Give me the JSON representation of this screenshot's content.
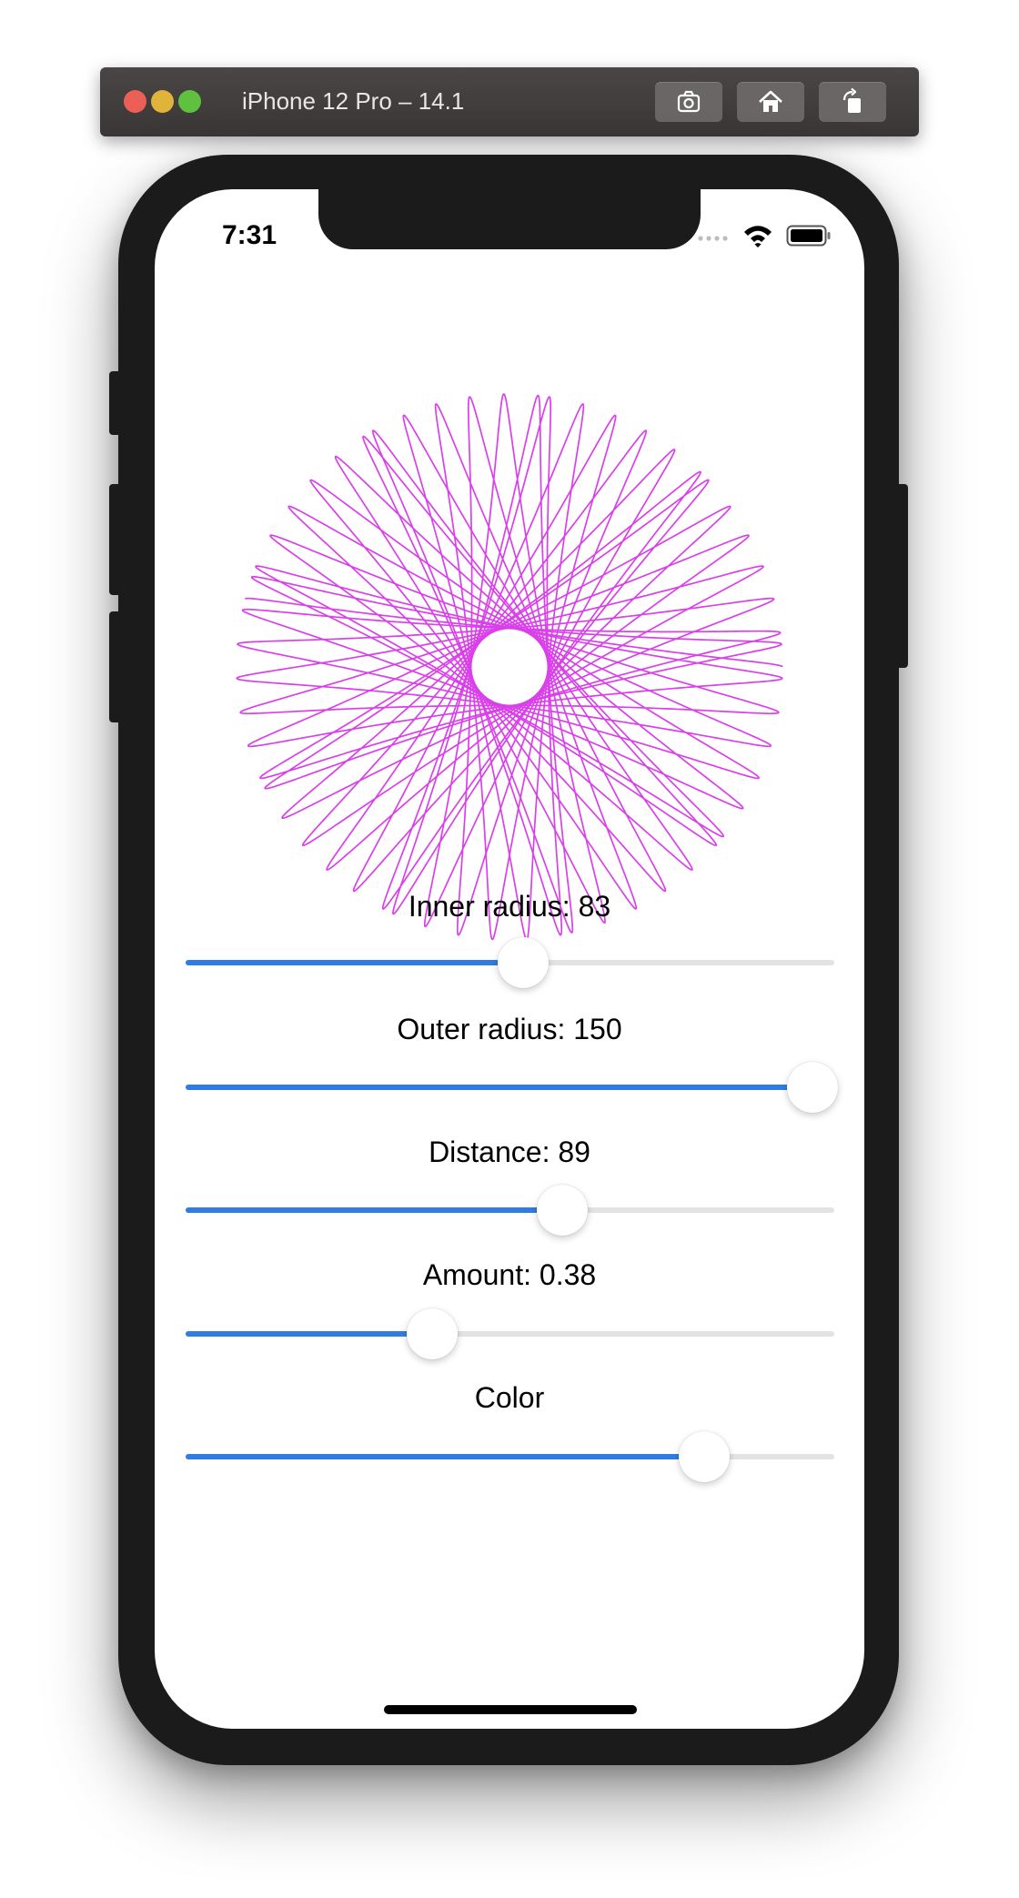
{
  "window": {
    "title": "iPhone 12 Pro – 14.1",
    "toolbar": [
      {
        "icon": "camera-icon"
      },
      {
        "icon": "home-icon"
      },
      {
        "icon": "rotate-icon"
      }
    ]
  },
  "status_bar": {
    "time": "7:31",
    "icons": [
      "signal-icon",
      "wifi-icon",
      "battery-icon"
    ]
  },
  "spirograph": {
    "color": "#d940ea",
    "inner_radius": 83,
    "outer_radius": 150,
    "distance": 89,
    "amount": 0.38
  },
  "controls": [
    {
      "id": "inner",
      "label": "Inner radius: 83",
      "value": 0.52
    },
    {
      "id": "outer",
      "label": "Outer radius: 150",
      "value": 0.967
    },
    {
      "id": "distance",
      "label": "Distance: 89",
      "value": 0.58
    },
    {
      "id": "amount",
      "label": "Amount: 0.38",
      "value": 0.38
    },
    {
      "id": "color",
      "label": "Color",
      "value": 0.8
    }
  ],
  "colors": {
    "accent": "#2f7de1",
    "track": "#e3e3e6",
    "device": "#1c1b1b"
  }
}
